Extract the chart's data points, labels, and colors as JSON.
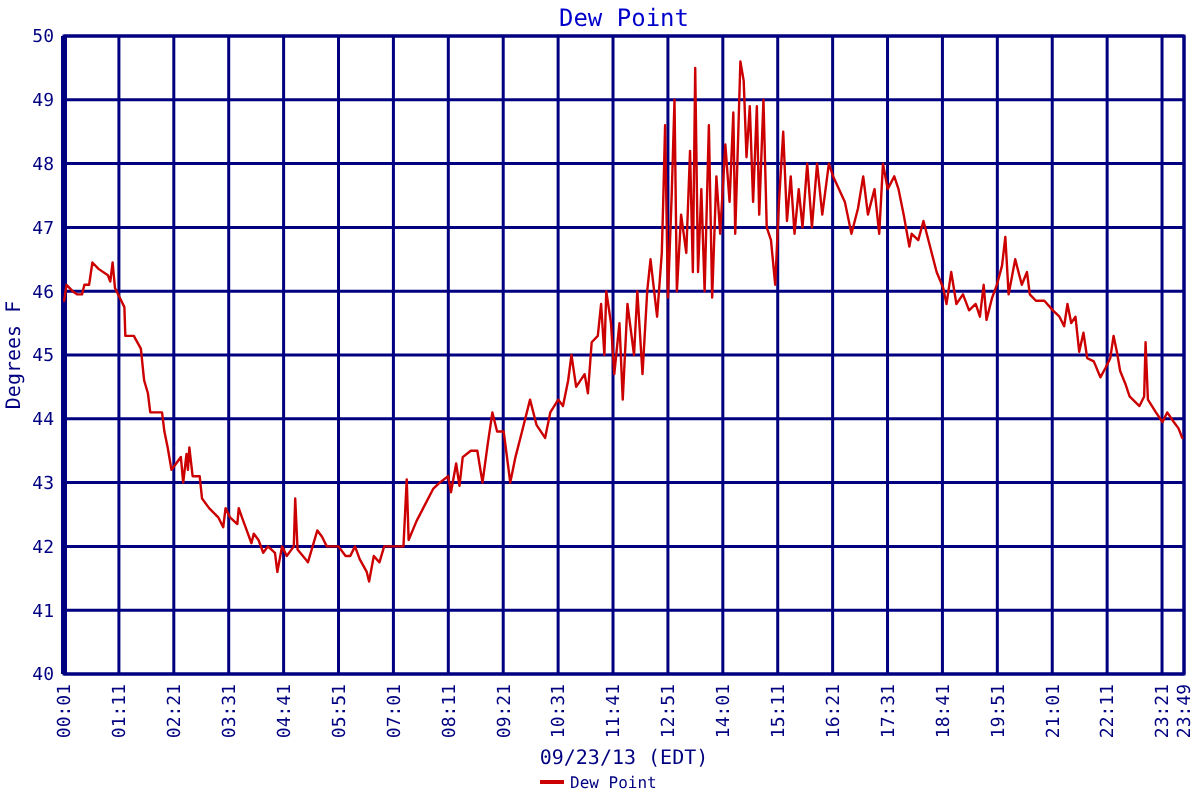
{
  "chart_data": {
    "type": "line",
    "title": "Dew Point",
    "xlabel": "09/23/13 (EDT)",
    "ylabel": "Degrees F",
    "grid": true,
    "legend": "bottom",
    "marker": "none",
    "line_style": "solid",
    "xlim": [
      0.0167,
      23.8167
    ],
    "xticks": [
      {
        "value": 0.0167,
        "label": "00:01"
      },
      {
        "value": 1.1833,
        "label": "01:11"
      },
      {
        "value": 2.35,
        "label": "02:21"
      },
      {
        "value": 3.5167,
        "label": "03:31"
      },
      {
        "value": 4.6833,
        "label": "04:41"
      },
      {
        "value": 5.85,
        "label": "05:51"
      },
      {
        "value": 7.0167,
        "label": "07:01"
      },
      {
        "value": 8.1833,
        "label": "08:11"
      },
      {
        "value": 9.35,
        "label": "09:21"
      },
      {
        "value": 10.5167,
        "label": "10:31"
      },
      {
        "value": 11.6833,
        "label": "11:41"
      },
      {
        "value": 12.85,
        "label": "12:51"
      },
      {
        "value": 14.0167,
        "label": "14:01"
      },
      {
        "value": 15.1833,
        "label": "15:11"
      },
      {
        "value": 16.35,
        "label": "16:21"
      },
      {
        "value": 17.5167,
        "label": "17:31"
      },
      {
        "value": 18.6833,
        "label": "18:41"
      },
      {
        "value": 19.85,
        "label": "19:51"
      },
      {
        "value": 21.0167,
        "label": "21:01"
      },
      {
        "value": 22.1833,
        "label": "22:11"
      },
      {
        "value": 23.35,
        "label": "23:21"
      },
      {
        "value": 23.8167,
        "label": "23:49"
      }
    ],
    "ylim": [
      40,
      50
    ],
    "yticks": [
      40,
      41,
      42,
      43,
      44,
      45,
      46,
      47,
      48,
      49,
      50
    ],
    "series": [
      {
        "name": "Dew Point",
        "color": "#cc0000",
        "x": [
          0.02,
          0.07,
          0.2,
          0.3,
          0.4,
          0.45,
          0.55,
          0.58,
          0.62,
          0.75,
          0.95,
          1.0,
          1.05,
          1.1,
          1.2,
          1.3,
          1.32,
          1.5,
          1.65,
          1.72,
          1.8,
          1.85,
          2.1,
          2.15,
          2.22,
          2.3,
          2.4,
          2.5,
          2.55,
          2.62,
          2.65,
          2.68,
          2.75,
          2.9,
          2.95,
          3.1,
          3.3,
          3.4,
          3.45,
          3.55,
          3.7,
          3.73,
          3.8,
          3.9,
          4.0,
          4.05,
          4.15,
          4.25,
          4.35,
          4.5,
          4.55,
          4.65,
          4.75,
          4.9,
          4.93,
          4.98,
          5.15,
          5.2,
          5.3,
          5.4,
          5.5,
          5.6,
          5.85,
          6.0,
          6.1,
          6.2,
          6.3,
          6.45,
          6.5,
          6.6,
          6.72,
          6.82,
          7.09,
          7.23,
          7.3,
          7.34,
          7.51,
          7.65,
          7.86,
          8.0,
          8.18,
          8.24,
          8.35,
          8.42,
          8.49,
          8.66,
          8.8,
          8.91,
          9.02,
          9.12,
          9.22,
          9.36,
          9.5,
          9.61,
          9.75,
          9.92,
          10.06,
          10.24,
          10.35,
          10.52,
          10.62,
          10.73,
          10.8,
          10.9,
          11.08,
          11.15,
          11.23,
          11.36,
          11.43,
          11.5,
          11.54,
          11.64,
          11.71,
          11.82,
          11.89,
          11.99,
          12.13,
          12.2,
          12.31,
          12.41,
          12.48,
          12.62,
          12.72,
          12.75,
          12.79,
          12.85,
          12.93,
          12.99,
          13.04,
          13.13,
          13.24,
          13.32,
          13.38,
          13.43,
          13.49,
          13.56,
          13.63,
          13.72,
          13.79,
          13.88,
          13.96,
          14.07,
          14.16,
          14.24,
          14.28,
          14.35,
          14.39,
          14.46,
          14.52,
          14.59,
          14.66,
          14.74,
          14.79,
          14.88,
          14.95,
          15.04,
          15.13,
          15.21,
          15.3,
          15.38,
          15.46,
          15.54,
          15.63,
          15.71,
          15.81,
          15.91,
          16.02,
          16.13,
          16.27,
          16.36,
          16.61,
          16.75,
          16.89,
          17.0,
          17.1,
          17.24,
          17.34,
          17.42,
          17.52,
          17.66,
          17.75,
          17.86,
          17.98,
          18.03,
          18.17,
          18.28,
          18.42,
          18.56,
          18.7,
          18.77,
          18.87,
          18.98,
          19.12,
          19.25,
          19.39,
          19.48,
          19.56,
          19.62,
          19.74,
          19.84,
          19.95,
          20.02,
          20.09,
          20.23,
          20.37,
          20.48,
          20.54,
          20.67,
          20.85,
          21.03,
          21.17,
          21.27,
          21.34,
          21.42,
          21.51,
          21.59,
          21.68,
          21.76,
          21.9,
          22.04,
          22.15,
          22.25,
          22.32,
          22.39,
          22.46,
          22.57,
          22.66,
          22.87,
          22.97,
          23.0,
          23.05,
          23.22,
          23.36,
          23.46,
          23.6,
          23.7,
          23.78
        ],
        "values": [
          45.85,
          46.1,
          46.0,
          45.95,
          45.95,
          46.1,
          46.1,
          46.25,
          46.45,
          46.35,
          46.25,
          46.15,
          46.45,
          46.05,
          45.9,
          45.75,
          45.3,
          45.3,
          45.1,
          44.6,
          44.4,
          44.1,
          44.1,
          43.8,
          43.55,
          43.2,
          43.3,
          43.4,
          43.0,
          43.45,
          43.2,
          43.55,
          43.1,
          43.1,
          42.75,
          42.6,
          42.45,
          42.3,
          42.6,
          42.45,
          42.35,
          42.6,
          42.45,
          42.25,
          42.05,
          42.2,
          42.1,
          41.9,
          42.0,
          41.9,
          41.6,
          42.0,
          41.85,
          42.0,
          42.75,
          41.95,
          41.8,
          41.75,
          42.0,
          42.25,
          42.15,
          42.0,
          42.0,
          41.85,
          41.85,
          42.0,
          41.8,
          41.6,
          41.45,
          41.85,
          41.75,
          42.0,
          42.0,
          42.0,
          43.05,
          42.1,
          42.4,
          42.6,
          42.9,
          43.0,
          43.1,
          42.85,
          43.3,
          42.95,
          43.4,
          43.5,
          43.5,
          43.0,
          43.6,
          44.1,
          43.8,
          43.8,
          43.0,
          43.4,
          43.8,
          44.3,
          43.9,
          43.7,
          44.1,
          44.3,
          44.2,
          44.6,
          45.0,
          44.5,
          44.7,
          44.4,
          45.2,
          45.3,
          45.8,
          45.0,
          46.0,
          45.5,
          44.7,
          45.5,
          44.3,
          45.8,
          45.0,
          46.0,
          44.7,
          46.0,
          46.5,
          45.6,
          46.6,
          47.4,
          48.6,
          45.9,
          47.5,
          49.0,
          46.0,
          47.2,
          46.6,
          48.2,
          46.3,
          49.5,
          46.3,
          47.6,
          46.0,
          48.6,
          45.9,
          47.8,
          46.9,
          48.3,
          47.4,
          48.8,
          46.9,
          48.6,
          49.6,
          49.3,
          48.1,
          48.9,
          47.4,
          48.9,
          47.2,
          49.0,
          47.0,
          46.8,
          46.1,
          47.4,
          48.5,
          47.1,
          47.8,
          46.9,
          47.6,
          47.0,
          48.0,
          47.0,
          48.0,
          47.2,
          48.0,
          47.8,
          47.4,
          46.9,
          47.3,
          47.8,
          47.2,
          47.6,
          46.9,
          48.0,
          47.6,
          47.8,
          47.6,
          47.2,
          46.7,
          46.9,
          46.8,
          47.1,
          46.7,
          46.3,
          46.05,
          45.8,
          46.3,
          45.8,
          45.95,
          45.7,
          45.8,
          45.6,
          46.1,
          45.55,
          45.9,
          46.1,
          46.4,
          46.85,
          45.95,
          46.5,
          46.1,
          46.3,
          45.95,
          45.85,
          45.85,
          45.7,
          45.6,
          45.45,
          45.8,
          45.5,
          45.6,
          45.05,
          45.35,
          44.95,
          44.9,
          44.65,
          44.8,
          44.95,
          45.3,
          45.05,
          44.75,
          44.55,
          44.35,
          44.2,
          44.35,
          45.2,
          44.3,
          44.1,
          43.95,
          44.1,
          43.95,
          43.85,
          43.7
        ]
      }
    ]
  }
}
